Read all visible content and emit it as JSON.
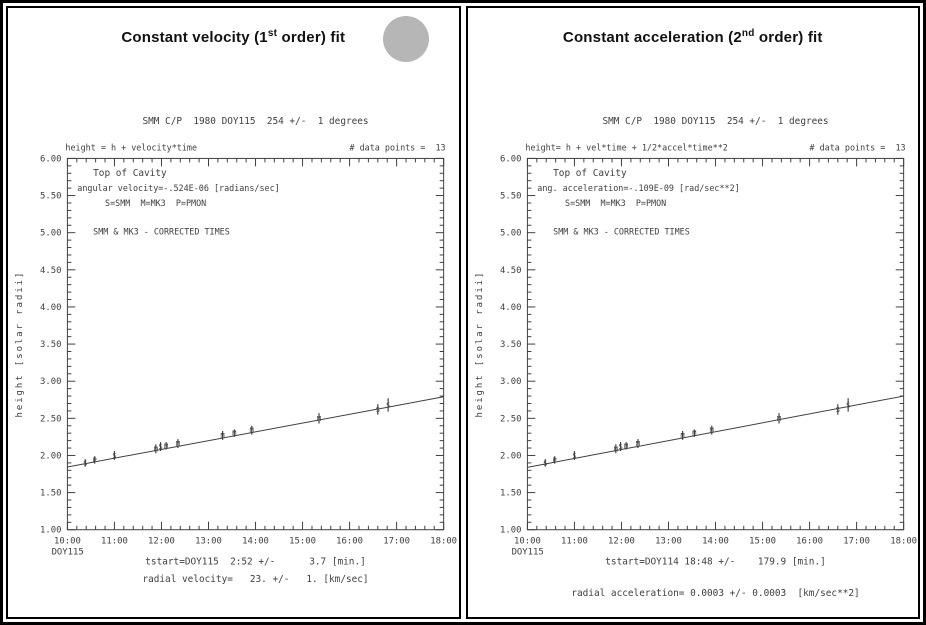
{
  "ink": "#3f3f3f",
  "page_border": "#000000",
  "decor": {
    "circle_color": "#b6b6b6"
  },
  "panels": [
    {
      "title": {
        "pre": "Constant velocity (1",
        "sup": "st",
        "post": " order) fit"
      }
    },
    {
      "title": {
        "pre": "Constant acceleration (2",
        "sup": "nd",
        "post": " order) fit"
      }
    }
  ],
  "chart_data": [
    {
      "type": "scatter",
      "header": "SMM C/P  1980 DOY115  254 +/-  1 degrees",
      "model_label": "height = h + velocity*time",
      "datapoints_label": "# data points =  13",
      "ylabel": "height [solar radii]",
      "xlim": [
        10,
        18
      ],
      "ylim": [
        1,
        6
      ],
      "xtick_step": 1,
      "xminor_step": 0.2,
      "ytick_step": 0.5,
      "yminor_step": 0.1,
      "grid": false,
      "xtick_labels": [
        "10:00",
        "11:00",
        "12:00",
        "13:00",
        "14:00",
        "15:00",
        "16:00",
        "17:00",
        "18:00"
      ],
      "x_axis_note": "DOY115",
      "annotations": [
        "Top of Cavity",
        "angular velocity=-.524E-06 [radians/sec]",
        "S=SMM  M=MK3  P=PMON",
        "SMM & MK3 - CORRECTED TIMES"
      ],
      "fit_line": {
        "x": [
          10,
          18
        ],
        "y": [
          1.845,
          2.79
        ]
      },
      "points": [
        {
          "x": 10.38,
          "y": 1.9,
          "err": 0.05,
          "m": "S"
        },
        {
          "x": 10.58,
          "y": 1.94,
          "err": 0.05,
          "m": "P"
        },
        {
          "x": 11.0,
          "y": 2.0,
          "err": 0.06,
          "m": "S"
        },
        {
          "x": 11.88,
          "y": 2.09,
          "err": 0.06,
          "m": "M"
        },
        {
          "x": 11.98,
          "y": 2.12,
          "err": 0.06,
          "m": "S"
        },
        {
          "x": 12.1,
          "y": 2.13,
          "err": 0.05,
          "m": "M"
        },
        {
          "x": 12.35,
          "y": 2.16,
          "err": 0.06,
          "m": "M"
        },
        {
          "x": 13.3,
          "y": 2.27,
          "err": 0.06,
          "m": "M"
        },
        {
          "x": 13.55,
          "y": 2.3,
          "err": 0.05,
          "m": "M"
        },
        {
          "x": 13.92,
          "y": 2.34,
          "err": 0.06,
          "m": "M"
        },
        {
          "x": 15.35,
          "y": 2.5,
          "err": 0.07,
          "m": "M"
        },
        {
          "x": 16.6,
          "y": 2.62,
          "err": 0.07,
          "m": "S"
        },
        {
          "x": 16.82,
          "y": 2.68,
          "err": 0.09,
          "m": "S"
        }
      ],
      "results": [
        "tstart=DOY115  2:52 +/-      3.7 [min.]",
        "radial velocity=   23. +/-   1. [km/sec]"
      ],
      "results_gap": 18
    },
    {
      "type": "scatter",
      "header": "SMM C/P  1980 DOY115  254 +/-  1 degrees",
      "model_label": "height= h + vel*time + 1/2*accel*time**2",
      "datapoints_label": "# data points =  13",
      "ylabel": "height [solar radii]",
      "xlim": [
        10,
        18
      ],
      "ylim": [
        1,
        6
      ],
      "xtick_step": 1,
      "xminor_step": 0.2,
      "ytick_step": 0.5,
      "yminor_step": 0.1,
      "grid": false,
      "xtick_labels": [
        "10:00",
        "11:00",
        "12:00",
        "13:00",
        "14:00",
        "15:00",
        "16:00",
        "17:00",
        "18:00"
      ],
      "x_axis_note": "DOY115",
      "annotations": [
        "Top of Cavity",
        "ang. acceleration=-.109E-09 [rad/sec**2]",
        "S=SMM  M=MK3  P=PMON",
        "SMM & MK3 - CORRECTED TIMES"
      ],
      "fit_line": {
        "x": [
          10,
          18
        ],
        "y": [
          1.84,
          2.8
        ]
      },
      "points": [
        {
          "x": 10.38,
          "y": 1.9,
          "err": 0.05,
          "m": "S"
        },
        {
          "x": 10.58,
          "y": 1.94,
          "err": 0.05,
          "m": "P"
        },
        {
          "x": 11.0,
          "y": 2.0,
          "err": 0.06,
          "m": "S"
        },
        {
          "x": 11.88,
          "y": 2.09,
          "err": 0.06,
          "m": "M"
        },
        {
          "x": 11.98,
          "y": 2.12,
          "err": 0.06,
          "m": "S"
        },
        {
          "x": 12.1,
          "y": 2.13,
          "err": 0.05,
          "m": "M"
        },
        {
          "x": 12.35,
          "y": 2.16,
          "err": 0.06,
          "m": "M"
        },
        {
          "x": 13.3,
          "y": 2.27,
          "err": 0.06,
          "m": "M"
        },
        {
          "x": 13.55,
          "y": 2.3,
          "err": 0.05,
          "m": "M"
        },
        {
          "x": 13.92,
          "y": 2.34,
          "err": 0.06,
          "m": "M"
        },
        {
          "x": 15.35,
          "y": 2.5,
          "err": 0.07,
          "m": "M"
        },
        {
          "x": 16.6,
          "y": 2.62,
          "err": 0.07,
          "m": "S"
        },
        {
          "x": 16.82,
          "y": 2.68,
          "err": 0.09,
          "m": "S"
        }
      ],
      "results": [
        "tstart=DOY114 18:48 +/-    179.9 [min.]",
        "radial acceleration= 0.0003 +/- 0.0003  [km/sec**2]"
      ],
      "results_gap": 32
    }
  ]
}
